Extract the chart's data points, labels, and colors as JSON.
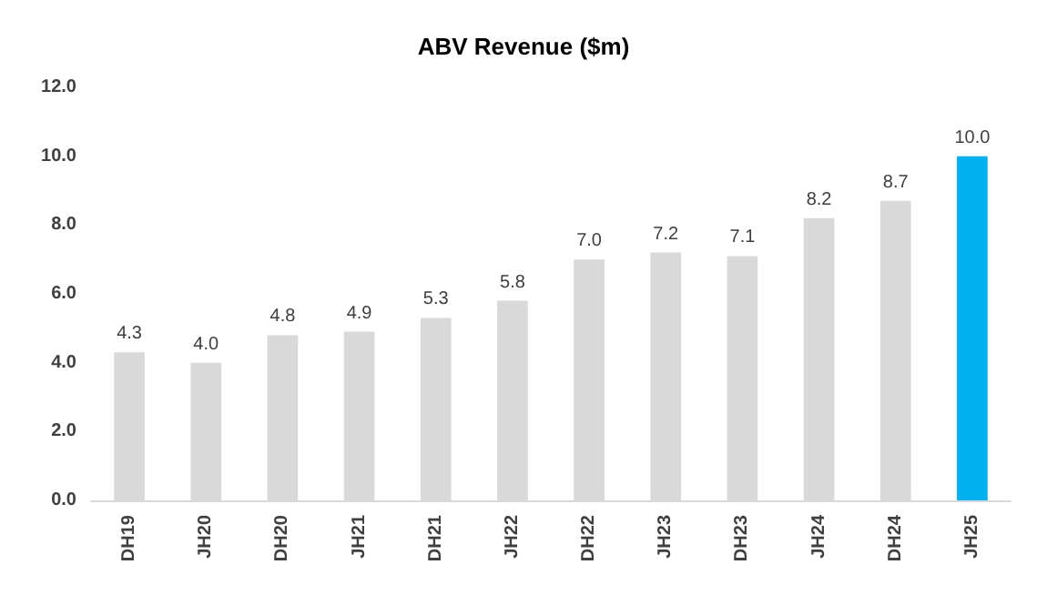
{
  "chart_data": {
    "type": "bar",
    "title": "ABV Revenue ($m)",
    "categories": [
      "DH19",
      "JH20",
      "DH20",
      "JH21",
      "DH21",
      "JH22",
      "DH22",
      "JH23",
      "DH23",
      "JH24",
      "DH24",
      "JH25"
    ],
    "values": [
      4.3,
      4.0,
      4.8,
      4.9,
      5.3,
      5.8,
      7.0,
      7.2,
      7.1,
      8.2,
      8.7,
      10.0
    ],
    "colors": [
      "#d9d9d9",
      "#d9d9d9",
      "#d9d9d9",
      "#d9d9d9",
      "#d9d9d9",
      "#d9d9d9",
      "#d9d9d9",
      "#d9d9d9",
      "#d9d9d9",
      "#d9d9d9",
      "#d9d9d9",
      "#00b0f0"
    ],
    "value_labels": [
      "4.3",
      "4.0",
      "4.8",
      "4.9",
      "5.3",
      "5.8",
      "7.0",
      "7.2",
      "7.1",
      "8.2",
      "8.7",
      "10.0"
    ],
    "ylim": [
      0,
      12
    ],
    "yticks": [
      {
        "value": 0,
        "label": "0.0"
      },
      {
        "value": 2,
        "label": "2.0"
      },
      {
        "value": 4,
        "label": "4.0"
      },
      {
        "value": 6,
        "label": "6.0"
      },
      {
        "value": 8,
        "label": "8.0"
      },
      {
        "value": 10,
        "label": "10.0"
      },
      {
        "value": 12,
        "label": "12.0"
      }
    ],
    "grid": false
  }
}
